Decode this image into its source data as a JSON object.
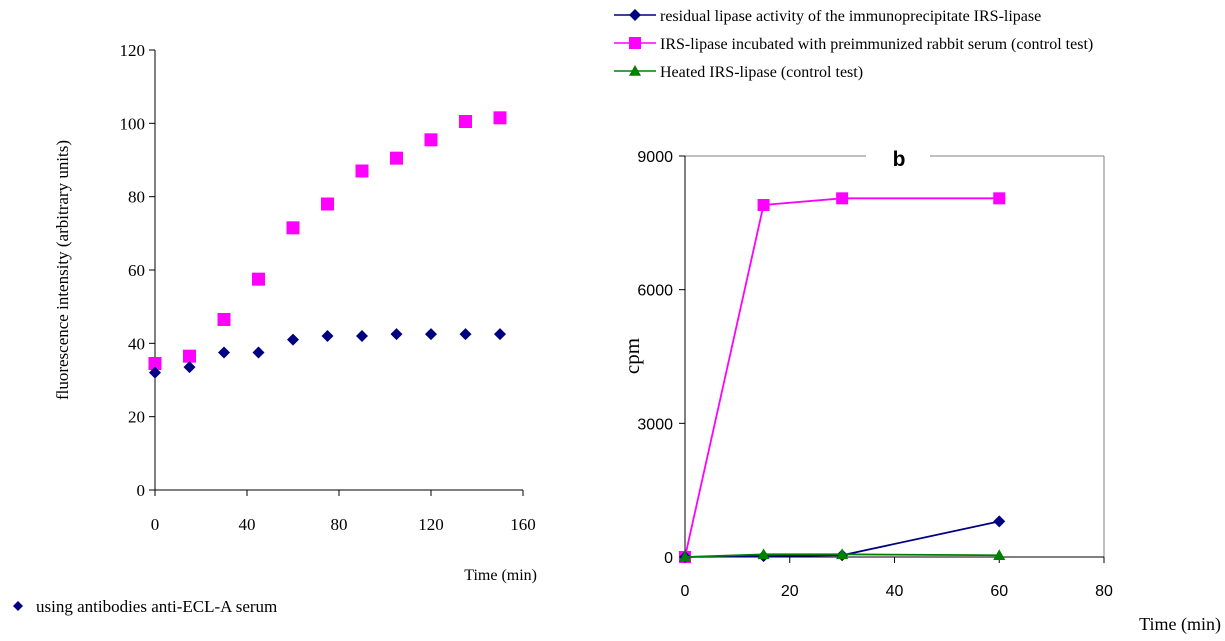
{
  "chart_data": [
    {
      "type": "scatter",
      "title": "",
      "xlabel": "Time (min)",
      "ylabel": "fluorescence intensity (arbitrary  units)",
      "xlim": [
        0,
        160
      ],
      "ylim": [
        0,
        120
      ],
      "x_ticks": [
        0,
        40,
        80,
        120,
        160
      ],
      "y_ticks": [
        0,
        20,
        40,
        60,
        80,
        100,
        120
      ],
      "x_tick_labels": [
        "0",
        "40",
        "80",
        "120",
        "160"
      ],
      "y_tick_labels": [
        "0",
        "20",
        "40",
        "60",
        "80",
        "100",
        "120"
      ],
      "grid": false,
      "legend_position": "bottom-left",
      "series": [
        {
          "name": "",
          "marker": "square",
          "color": "#ff00ff",
          "x": [
            0,
            15,
            30,
            45,
            60,
            75,
            90,
            105,
            120,
            135,
            150
          ],
          "y": [
            34.5,
            36.5,
            46.5,
            57.5,
            71.5,
            78,
            87,
            90.5,
            95.5,
            100.5,
            101.5
          ]
        },
        {
          "name": "using  antibodies  anti-ECL-A serum",
          "marker": "diamond",
          "color": "#000080",
          "x": [
            0,
            15,
            30,
            45,
            60,
            75,
            90,
            105,
            120,
            135,
            150
          ],
          "y": [
            32,
            33.5,
            37.5,
            37.5,
            41,
            42,
            42,
            42.5,
            42.5,
            42.5,
            42.5
          ]
        }
      ]
    },
    {
      "type": "line",
      "title": "b",
      "xlabel": "Time (min)",
      "ylabel": "cpm",
      "xlim": [
        0,
        80
      ],
      "ylim": [
        0,
        9000
      ],
      "x_ticks": [
        0,
        20,
        40,
        60,
        80
      ],
      "y_ticks": [
        0,
        3000,
        6000,
        9000
      ],
      "x_tick_labels": [
        "0",
        "20",
        "40",
        "60",
        "80"
      ],
      "y_tick_labels": [
        "0",
        "3000",
        "6000",
        "9000"
      ],
      "grid": false,
      "legend_position": "top",
      "series": [
        {
          "name": "residual lipase activity of the immunoprecipitate IRS-lipase",
          "marker": "diamond",
          "color": "#000080",
          "x": [
            0,
            15,
            30,
            60
          ],
          "y": [
            0,
            20,
            40,
            800
          ]
        },
        {
          "name": "IRS-lipase incubated with preimmunized rabbit serum (control test)",
          "marker": "square",
          "color": "#ff00ff",
          "x": [
            0,
            15,
            30,
            60
          ],
          "y": [
            0,
            7900,
            8050,
            8050
          ]
        },
        {
          "name": "Heated IRS-lipase (control test)",
          "marker": "triangle",
          "color": "#008000",
          "x": [
            0,
            15,
            30,
            60
          ],
          "y": [
            0,
            60,
            60,
            40
          ]
        }
      ]
    }
  ]
}
